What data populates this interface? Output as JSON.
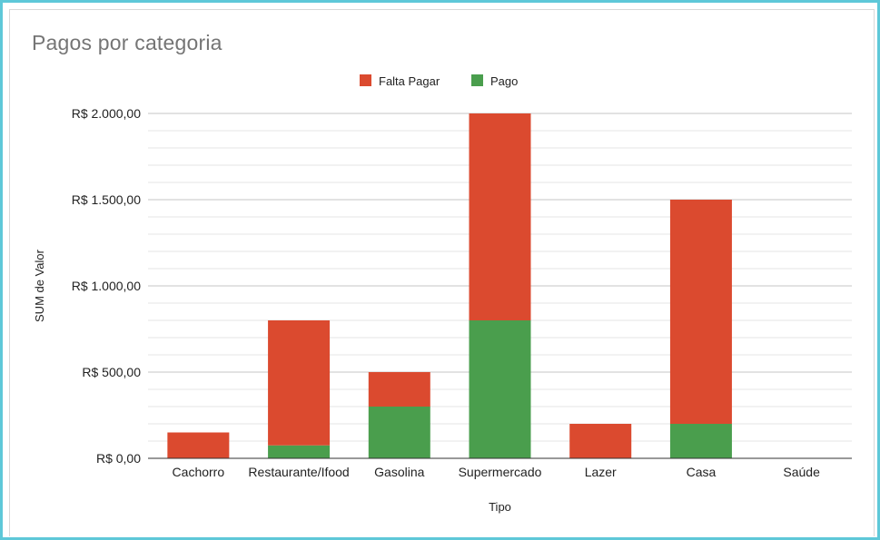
{
  "chart_data": {
    "type": "bar",
    "stacked": true,
    "title": "Pagos por categoria",
    "xlabel": "Tipo",
    "ylabel": "SUM de Valor",
    "categories": [
      "Cachorro",
      "Restaurante/Ifood",
      "Gasolina",
      "Supermercado",
      "Lazer",
      "Casa",
      "Saúde"
    ],
    "series": [
      {
        "name": "Pago",
        "color": "#4a9e4d",
        "values": [
          0,
          75,
          300,
          800,
          0,
          200,
          0
        ]
      },
      {
        "name": "Falta Pagar",
        "color": "#db4a2f",
        "values": [
          150,
          725,
          200,
          1200,
          200,
          1300,
          0
        ]
      }
    ],
    "legend_order": [
      "Falta Pagar",
      "Pago"
    ],
    "legend_position": "top-center",
    "ylim": [
      0,
      2000
    ],
    "y_ticks": [
      {
        "value": 0,
        "label": "R$ 0,00"
      },
      {
        "value": 500,
        "label": "R$ 500,00"
      },
      {
        "value": 1000,
        "label": "R$ 1.000,00"
      },
      {
        "value": 1500,
        "label": "R$ 1.500,00"
      },
      {
        "value": 2000,
        "label": "R$ 2.000,00"
      }
    ],
    "minor_grid_step": 100,
    "grid": true
  }
}
